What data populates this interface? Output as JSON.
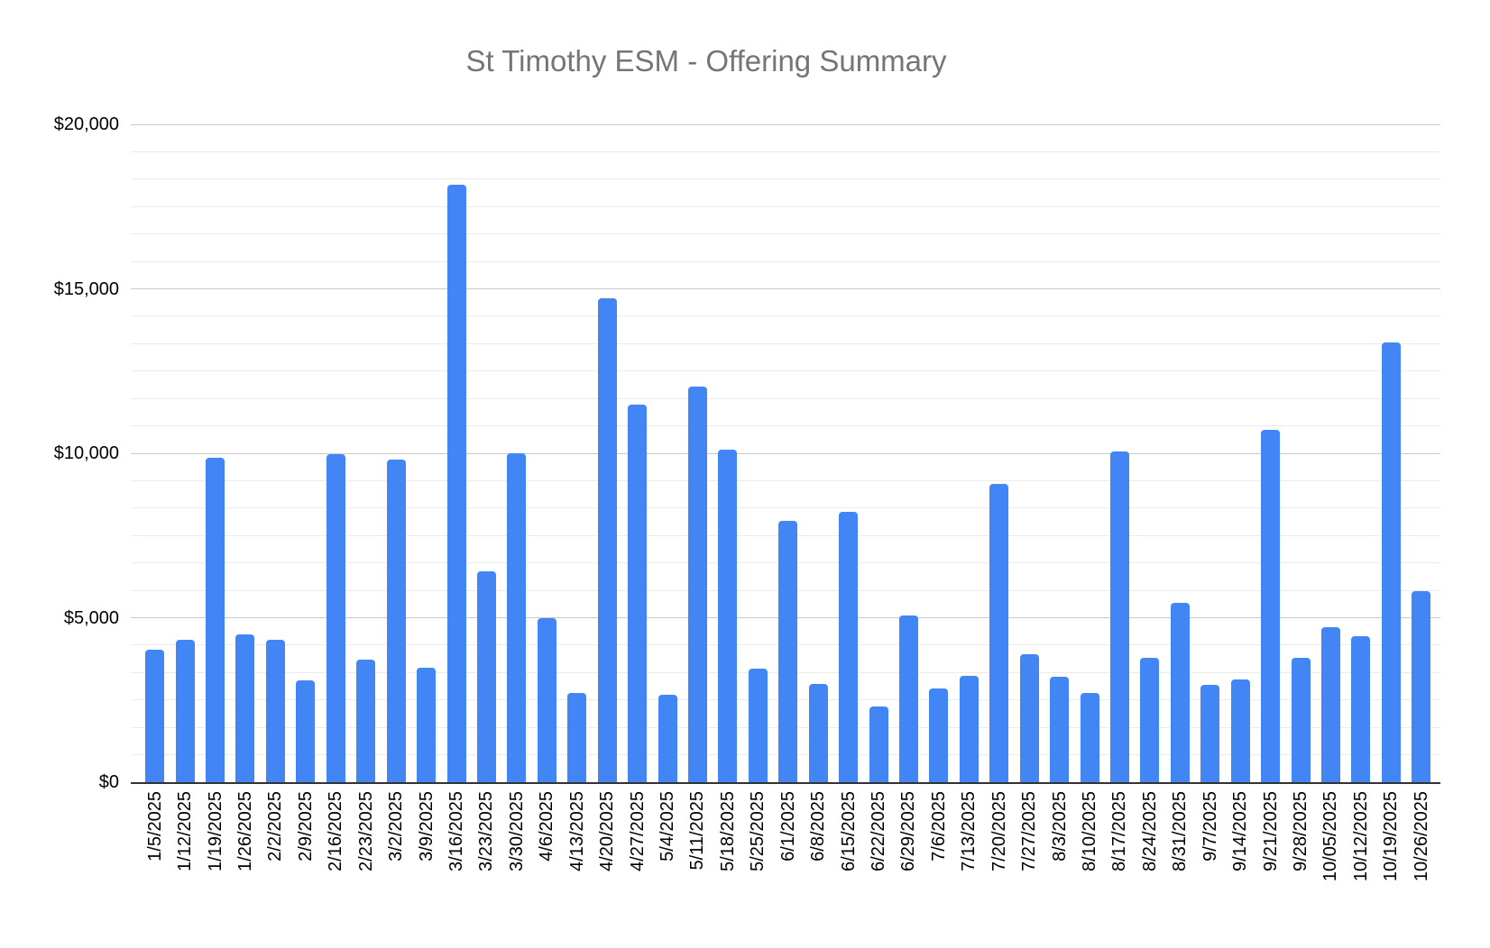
{
  "chart": {
    "title": "St Timothy ESM - Offering Summary",
    "title_color": "#757575",
    "bar_color": "#4285f4",
    "background_color": "#ffffff",
    "axis": {
      "y_min": 0,
      "y_max": 20000,
      "major_step": 5000,
      "minor_divisions_per_major": 6,
      "y_tick_labels": [
        "$0",
        "$5,000",
        "$10,000",
        "$15,000",
        "$20,000"
      ],
      "baseline_color": "#333333",
      "major_gridline_color": "#c9c9c9",
      "minor_gridline_color": "#ebebeb",
      "label_color": "#000000"
    }
  },
  "chart_data": {
    "type": "bar",
    "title": "St Timothy ESM - Offering Summary",
    "xlabel": "",
    "ylabel": "",
    "ylim": [
      0,
      20000
    ],
    "grid": "horizontal; major lines every 5000 labeled, 5 minor lines between majors (~833 steps)",
    "legend_position": "none",
    "x_tick_rotation": -90,
    "categories": [
      "1/5/2025",
      "1/12/2025",
      "1/19/2025",
      "1/26/2025",
      "2/2/2025",
      "2/9/2025",
      "2/16/2025",
      "2/23/2025",
      "3/2/2025",
      "3/9/2025",
      "3/16/2025",
      "3/23/2025",
      "3/30/2025",
      "4/6/2025",
      "4/13/2025",
      "4/20/2025",
      "4/27/2025",
      "5/4/2025",
      "5/11/2025",
      "5/18/2025",
      "5/25/2025",
      "6/1/2025",
      "6/8/2025",
      "6/15/2025",
      "6/22/2025",
      "6/29/2025",
      "7/6/2025",
      "7/13/2025",
      "7/20/2025",
      "7/27/2025",
      "8/3/2025",
      "8/10/2025",
      "8/17/2025",
      "8/24/2025",
      "8/31/2025",
      "9/7/2025",
      "9/14/2025",
      "9/21/2025",
      "9/28/2025",
      "10/05/2025",
      "10/12/2025",
      "10/19/2025",
      "10/26/2025"
    ],
    "values": [
      4030,
      4330,
      9850,
      4490,
      4330,
      3110,
      9980,
      3730,
      9800,
      3480,
      18160,
      6400,
      10000,
      5000,
      2710,
      14720,
      11490,
      2670,
      12040,
      10120,
      3450,
      7940,
      2990,
      8210,
      2290,
      5070,
      2850,
      3220,
      9060,
      3880,
      3200,
      2700,
      10060,
      3770,
      5450,
      2970,
      3130,
      10700,
      3780,
      4710,
      4430,
      13370,
      5800
    ]
  }
}
